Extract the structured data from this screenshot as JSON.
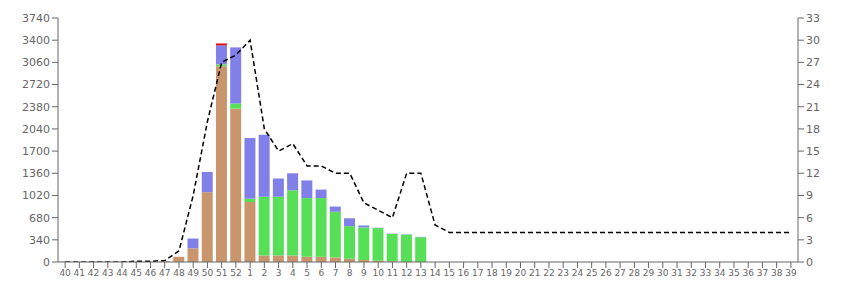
{
  "chart_data": {
    "type": "bar",
    "stacked": true,
    "grid": false,
    "categories": [
      "40",
      "41",
      "42",
      "43",
      "44",
      "45",
      "46",
      "47",
      "48",
      "49",
      "50",
      "51",
      "52",
      "1",
      "2",
      "3",
      "4",
      "5",
      "6",
      "7",
      "8",
      "9",
      "10",
      "11",
      "12",
      "13",
      "14",
      "15",
      "16",
      "17",
      "18",
      "19",
      "20",
      "21",
      "22",
      "23",
      "24",
      "25",
      "26",
      "27",
      "28",
      "29",
      "30",
      "31",
      "32",
      "33",
      "34",
      "35",
      "36",
      "37",
      "38",
      "39"
    ],
    "series": [
      {
        "type": "bar",
        "color": "#c8956c",
        "values": [
          5,
          3,
          3,
          3,
          5,
          5,
          5,
          10,
          80,
          210,
          1070,
          3000,
          2350,
          920,
          100,
          100,
          100,
          80,
          80,
          70,
          50,
          30,
          20,
          10,
          0,
          0,
          0,
          0,
          0,
          0,
          0,
          0,
          0,
          0,
          0,
          0,
          0,
          0,
          0,
          0,
          0,
          0,
          0,
          0,
          0,
          0,
          0,
          0,
          0,
          0,
          0,
          0
        ]
      },
      {
        "type": "bar",
        "color": "#57e057",
        "values": [
          0,
          0,
          0,
          0,
          0,
          0,
          0,
          0,
          0,
          0,
          0,
          30,
          80,
          50,
          900,
          900,
          1000,
          900,
          900,
          700,
          500,
          500,
          500,
          420,
          420,
          380,
          0,
          0,
          0,
          0,
          0,
          0,
          0,
          0,
          0,
          0,
          0,
          0,
          0,
          0,
          0,
          0,
          0,
          0,
          0,
          0,
          0,
          0,
          0,
          0,
          0,
          0
        ]
      },
      {
        "type": "bar",
        "color": "#8080e8",
        "values": [
          0,
          0,
          0,
          0,
          0,
          0,
          0,
          0,
          0,
          150,
          310,
          290,
          860,
          930,
          950,
          280,
          260,
          270,
          130,
          80,
          120,
          30,
          5,
          5,
          5,
          5,
          0,
          0,
          0,
          0,
          0,
          0,
          0,
          0,
          0,
          0,
          0,
          0,
          0,
          0,
          0,
          0,
          0,
          0,
          0,
          0,
          0,
          0,
          0,
          0,
          0,
          0
        ]
      },
      {
        "type": "bar",
        "color": "#dd1111",
        "values": [
          0,
          0,
          0,
          0,
          0,
          0,
          0,
          0,
          0,
          0,
          0,
          30,
          0,
          0,
          0,
          0,
          0,
          0,
          0,
          0,
          0,
          0,
          0,
          0,
          0,
          0,
          0,
          0,
          0,
          0,
          0,
          0,
          0,
          0,
          0,
          0,
          0,
          0,
          0,
          0,
          0,
          0,
          0,
          0,
          0,
          0,
          0,
          0,
          0,
          0,
          0,
          0
        ]
      },
      {
        "type": "line",
        "axis": "y2",
        "color": "#000000",
        "line_style": "dashed",
        "values": [
          0,
          0,
          0,
          0,
          0,
          0.1,
          0.1,
          0.2,
          1.5,
          9,
          19,
          27,
          28,
          30,
          18,
          15,
          16,
          13,
          13,
          12,
          12,
          8,
          7,
          6,
          12,
          12,
          5,
          4,
          4,
          4,
          4,
          4,
          4,
          4,
          4,
          4,
          4,
          4,
          4,
          4,
          4,
          4,
          4,
          4,
          4,
          4,
          4,
          4,
          4,
          4,
          4,
          4
        ]
      }
    ],
    "ylim": [
      0,
      3740
    ],
    "yticks": [
      0,
      340,
      680,
      1020,
      1360,
      1700,
      2040,
      2380,
      2720,
      3060,
      3400,
      3740
    ],
    "y2lim": [
      0,
      33
    ],
    "y2ticks": [
      0,
      3,
      6,
      9,
      12,
      15,
      18,
      21,
      24,
      27,
      30,
      33
    ]
  }
}
